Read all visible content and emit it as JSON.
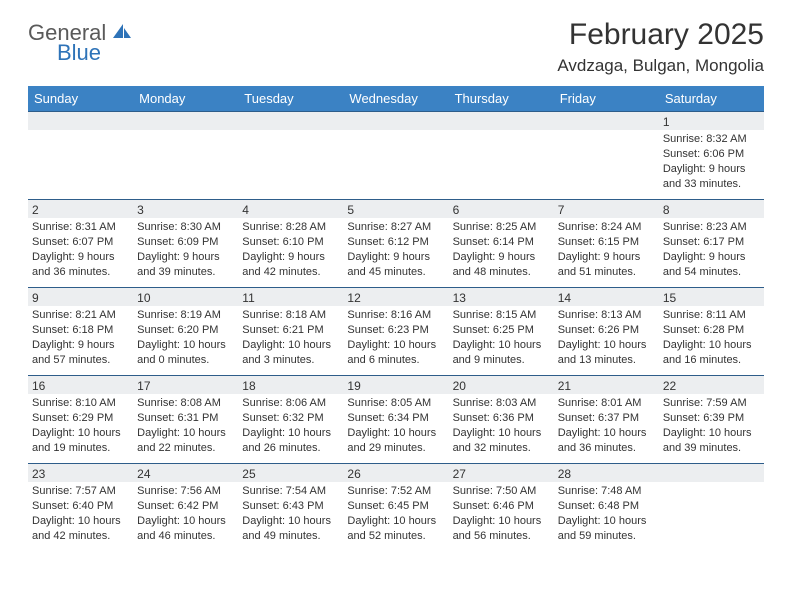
{
  "brand": {
    "word1": "General",
    "word2": "Blue",
    "accent_color": "#2e73b8",
    "gray": "#5a5a5a"
  },
  "header": {
    "title": "February 2025",
    "location": "Avdzaga, Bulgan, Mongolia"
  },
  "calendar": {
    "header_bg": "#3b82c4",
    "header_fg": "#ffffff",
    "cell_border": "#2e5d8a",
    "daynum_bg": "#eceef0",
    "columns": [
      "Sunday",
      "Monday",
      "Tuesday",
      "Wednesday",
      "Thursday",
      "Friday",
      "Saturday"
    ],
    "weeks": [
      [
        {
          "day": "",
          "lines": []
        },
        {
          "day": "",
          "lines": []
        },
        {
          "day": "",
          "lines": []
        },
        {
          "day": "",
          "lines": []
        },
        {
          "day": "",
          "lines": []
        },
        {
          "day": "",
          "lines": []
        },
        {
          "day": "1",
          "lines": [
            "Sunrise: 8:32 AM",
            "Sunset: 6:06 PM",
            "Daylight: 9 hours and 33 minutes."
          ]
        }
      ],
      [
        {
          "day": "2",
          "lines": [
            "Sunrise: 8:31 AM",
            "Sunset: 6:07 PM",
            "Daylight: 9 hours and 36 minutes."
          ]
        },
        {
          "day": "3",
          "lines": [
            "Sunrise: 8:30 AM",
            "Sunset: 6:09 PM",
            "Daylight: 9 hours and 39 minutes."
          ]
        },
        {
          "day": "4",
          "lines": [
            "Sunrise: 8:28 AM",
            "Sunset: 6:10 PM",
            "Daylight: 9 hours and 42 minutes."
          ]
        },
        {
          "day": "5",
          "lines": [
            "Sunrise: 8:27 AM",
            "Sunset: 6:12 PM",
            "Daylight: 9 hours and 45 minutes."
          ]
        },
        {
          "day": "6",
          "lines": [
            "Sunrise: 8:25 AM",
            "Sunset: 6:14 PM",
            "Daylight: 9 hours and 48 minutes."
          ]
        },
        {
          "day": "7",
          "lines": [
            "Sunrise: 8:24 AM",
            "Sunset: 6:15 PM",
            "Daylight: 9 hours and 51 minutes."
          ]
        },
        {
          "day": "8",
          "lines": [
            "Sunrise: 8:23 AM",
            "Sunset: 6:17 PM",
            "Daylight: 9 hours and 54 minutes."
          ]
        }
      ],
      [
        {
          "day": "9",
          "lines": [
            "Sunrise: 8:21 AM",
            "Sunset: 6:18 PM",
            "Daylight: 9 hours and 57 minutes."
          ]
        },
        {
          "day": "10",
          "lines": [
            "Sunrise: 8:19 AM",
            "Sunset: 6:20 PM",
            "Daylight: 10 hours and 0 minutes."
          ]
        },
        {
          "day": "11",
          "lines": [
            "Sunrise: 8:18 AM",
            "Sunset: 6:21 PM",
            "Daylight: 10 hours and 3 minutes."
          ]
        },
        {
          "day": "12",
          "lines": [
            "Sunrise: 8:16 AM",
            "Sunset: 6:23 PM",
            "Daylight: 10 hours and 6 minutes."
          ]
        },
        {
          "day": "13",
          "lines": [
            "Sunrise: 8:15 AM",
            "Sunset: 6:25 PM",
            "Daylight: 10 hours and 9 minutes."
          ]
        },
        {
          "day": "14",
          "lines": [
            "Sunrise: 8:13 AM",
            "Sunset: 6:26 PM",
            "Daylight: 10 hours and 13 minutes."
          ]
        },
        {
          "day": "15",
          "lines": [
            "Sunrise: 8:11 AM",
            "Sunset: 6:28 PM",
            "Daylight: 10 hours and 16 minutes."
          ]
        }
      ],
      [
        {
          "day": "16",
          "lines": [
            "Sunrise: 8:10 AM",
            "Sunset: 6:29 PM",
            "Daylight: 10 hours and 19 minutes."
          ]
        },
        {
          "day": "17",
          "lines": [
            "Sunrise: 8:08 AM",
            "Sunset: 6:31 PM",
            "Daylight: 10 hours and 22 minutes."
          ]
        },
        {
          "day": "18",
          "lines": [
            "Sunrise: 8:06 AM",
            "Sunset: 6:32 PM",
            "Daylight: 10 hours and 26 minutes."
          ]
        },
        {
          "day": "19",
          "lines": [
            "Sunrise: 8:05 AM",
            "Sunset: 6:34 PM",
            "Daylight: 10 hours and 29 minutes."
          ]
        },
        {
          "day": "20",
          "lines": [
            "Sunrise: 8:03 AM",
            "Sunset: 6:36 PM",
            "Daylight: 10 hours and 32 minutes."
          ]
        },
        {
          "day": "21",
          "lines": [
            "Sunrise: 8:01 AM",
            "Sunset: 6:37 PM",
            "Daylight: 10 hours and 36 minutes."
          ]
        },
        {
          "day": "22",
          "lines": [
            "Sunrise: 7:59 AM",
            "Sunset: 6:39 PM",
            "Daylight: 10 hours and 39 minutes."
          ]
        }
      ],
      [
        {
          "day": "23",
          "lines": [
            "Sunrise: 7:57 AM",
            "Sunset: 6:40 PM",
            "Daylight: 10 hours and 42 minutes."
          ]
        },
        {
          "day": "24",
          "lines": [
            "Sunrise: 7:56 AM",
            "Sunset: 6:42 PM",
            "Daylight: 10 hours and 46 minutes."
          ]
        },
        {
          "day": "25",
          "lines": [
            "Sunrise: 7:54 AM",
            "Sunset: 6:43 PM",
            "Daylight: 10 hours and 49 minutes."
          ]
        },
        {
          "day": "26",
          "lines": [
            "Sunrise: 7:52 AM",
            "Sunset: 6:45 PM",
            "Daylight: 10 hours and 52 minutes."
          ]
        },
        {
          "day": "27",
          "lines": [
            "Sunrise: 7:50 AM",
            "Sunset: 6:46 PM",
            "Daylight: 10 hours and 56 minutes."
          ]
        },
        {
          "day": "28",
          "lines": [
            "Sunrise: 7:48 AM",
            "Sunset: 6:48 PM",
            "Daylight: 10 hours and 59 minutes."
          ]
        },
        {
          "day": "",
          "lines": []
        }
      ]
    ]
  }
}
